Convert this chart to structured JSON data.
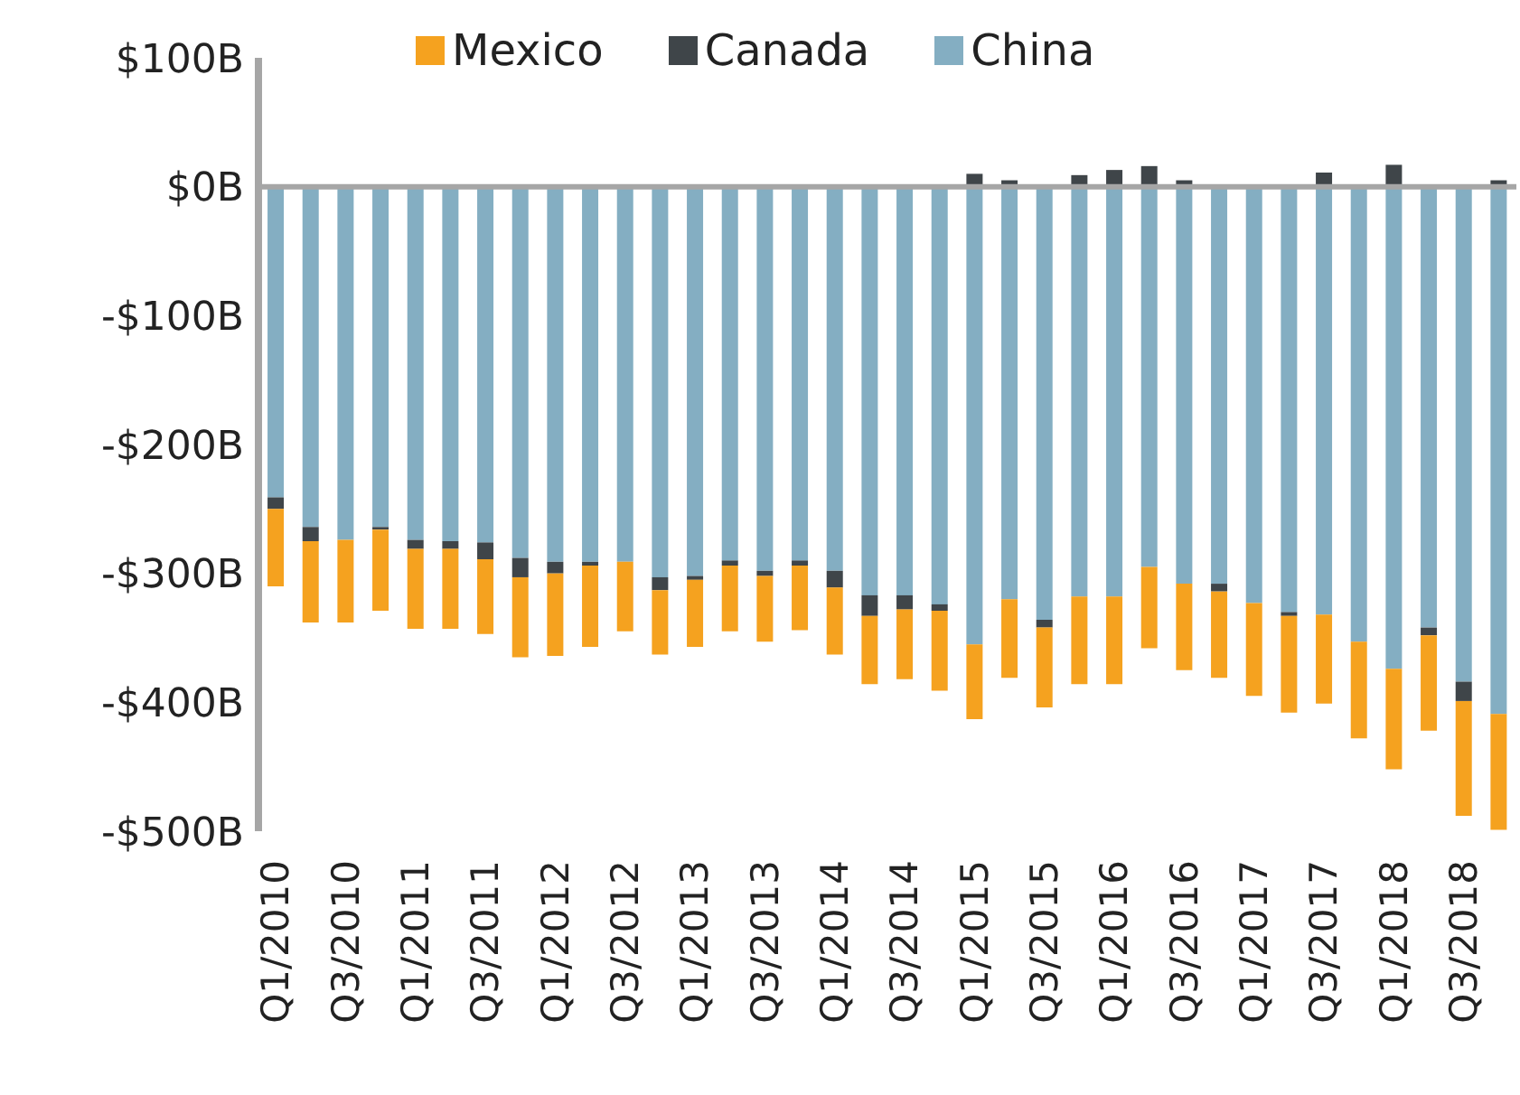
{
  "chart_data": {
    "type": "bar",
    "stacked": true,
    "legend": "top",
    "ref_lines": [
      {
        "axis": "y",
        "value": 0,
        "color": "#a6a6a6"
      }
    ],
    "categories": [
      "Q1/2010",
      null,
      "Q3/2010",
      null,
      "Q1/2011",
      null,
      "Q3/2011",
      null,
      "Q1/2012",
      null,
      "Q3/2012",
      null,
      "Q1/2013",
      null,
      "Q3/2013",
      null,
      "Q1/2014",
      null,
      "Q3/2014",
      null,
      "Q1/2015",
      null,
      "Q3/2015",
      null,
      "Q1/2016",
      null,
      "Q3/2016",
      null,
      "Q1/2017",
      null,
      "Q3/2017",
      null,
      "Q1/2018",
      null,
      "Q3/2018",
      null
    ],
    "series": [
      {
        "name": "China",
        "color": "#84aec2",
        "values": [
          -241,
          -264,
          -274,
          -264,
          -274,
          -275,
          -276,
          -288,
          -291,
          -291,
          -291,
          -303,
          -302,
          -290,
          -298,
          -290,
          -298,
          -317,
          -317,
          -324,
          -355,
          -320,
          -336,
          -318,
          -318,
          -295,
          -308,
          -308,
          -323,
          -330,
          -332,
          -353,
          -374,
          -342,
          -384,
          -409
        ]
      },
      {
        "name": "Canada",
        "color": "#3f4549",
        "values": [
          -9,
          -11,
          null,
          -2,
          -7,
          -6,
          -13,
          -15,
          -9,
          -3,
          null,
          -10,
          -3,
          -4,
          -4,
          -4,
          -13,
          -16,
          -11,
          -5,
          10,
          5,
          -6,
          9,
          13,
          16,
          5,
          -6,
          null,
          -3,
          11,
          null,
          17,
          -6,
          -15,
          5
        ]
      },
      {
        "name": "Mexico",
        "color": "#f5a21f",
        "values": [
          -60,
          -63,
          -64,
          -63,
          -62,
          -62,
          -58,
          -62,
          -64,
          -63,
          -54,
          -50,
          -52,
          -51,
          -51,
          -50,
          -52,
          -53,
          -54,
          -62,
          -58,
          -61,
          -62,
          -68,
          -68,
          -63,
          -67,
          -67,
          -72,
          -75,
          -69,
          -75,
          -78,
          -74,
          -89,
          -90
        ]
      }
    ],
    "ylim": [
      -500,
      100
    ],
    "yticks": [
      {
        "value": 100,
        "label": "$100B"
      },
      {
        "value": 0,
        "label": "$0B"
      },
      {
        "value": -100,
        "label": "-$100B"
      },
      {
        "value": -200,
        "label": "-$200B"
      },
      {
        "value": -300,
        "label": "-$300B"
      },
      {
        "value": -400,
        "label": "-$400B"
      },
      {
        "value": -500,
        "label": "-$500B"
      }
    ]
  }
}
